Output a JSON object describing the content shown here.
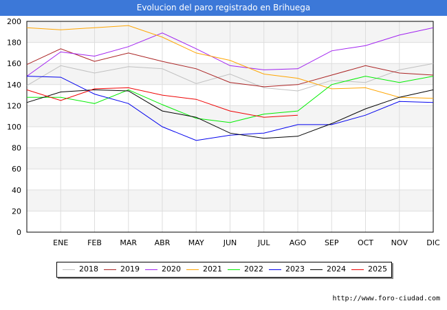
{
  "header": {
    "title": "Evolucion del paro registrado en Brihuega"
  },
  "footer": {
    "source": "http://www.foro-ciudad.com"
  },
  "chart_data": {
    "type": "line",
    "title": "Evolucion del paro registrado en Brihuega",
    "xlabel": "",
    "ylabel": "",
    "categories": [
      "",
      "ENE",
      "FEB",
      "MAR",
      "ABR",
      "MAY",
      "JUN",
      "JUL",
      "AGO",
      "SEP",
      "OCT",
      "NOV",
      "DIC"
    ],
    "ylim": [
      0,
      200
    ],
    "yticks": [
      0,
      20,
      40,
      60,
      80,
      100,
      120,
      140,
      160,
      180,
      200
    ],
    "grid": true,
    "legend_position": "bottom",
    "series": [
      {
        "name": "2018",
        "color": "#c0c0c0",
        "values": [
          139,
          158,
          151,
          157,
          155,
          141,
          150,
          137,
          134,
          144,
          142,
          154,
          160
        ]
      },
      {
        "name": "2019",
        "color": "#aa2222",
        "values": [
          159,
          174,
          162,
          170,
          162,
          155,
          142,
          138,
          140,
          149,
          158,
          151,
          149
        ]
      },
      {
        "name": "2020",
        "color": "#a020f0",
        "values": [
          148,
          171,
          167,
          176,
          189,
          174,
          158,
          154,
          155,
          172,
          177,
          187,
          194
        ]
      },
      {
        "name": "2021",
        "color": "#ffa500",
        "values": [
          194,
          192,
          194,
          196,
          185,
          170,
          163,
          150,
          146,
          136,
          137,
          128,
          127
        ]
      },
      {
        "name": "2022",
        "color": "#00ee00",
        "values": [
          128,
          128,
          122,
          135,
          121,
          108,
          104,
          112,
          115,
          140,
          148,
          142,
          148
        ]
      },
      {
        "name": "2023",
        "color": "#0000ee",
        "values": [
          148,
          147,
          131,
          122,
          100,
          87,
          92,
          94,
          102,
          102,
          111,
          124,
          123
        ]
      },
      {
        "name": "2024",
        "color": "#000000",
        "values": [
          123,
          133,
          135,
          134,
          115,
          109,
          94,
          89,
          91,
          103,
          117,
          128,
          135
        ]
      },
      {
        "name": "2025",
        "color": "#ee0000",
        "values": [
          135,
          125,
          136,
          137,
          130,
          126,
          115,
          109,
          111,
          null,
          null,
          null,
          null
        ]
      }
    ]
  }
}
